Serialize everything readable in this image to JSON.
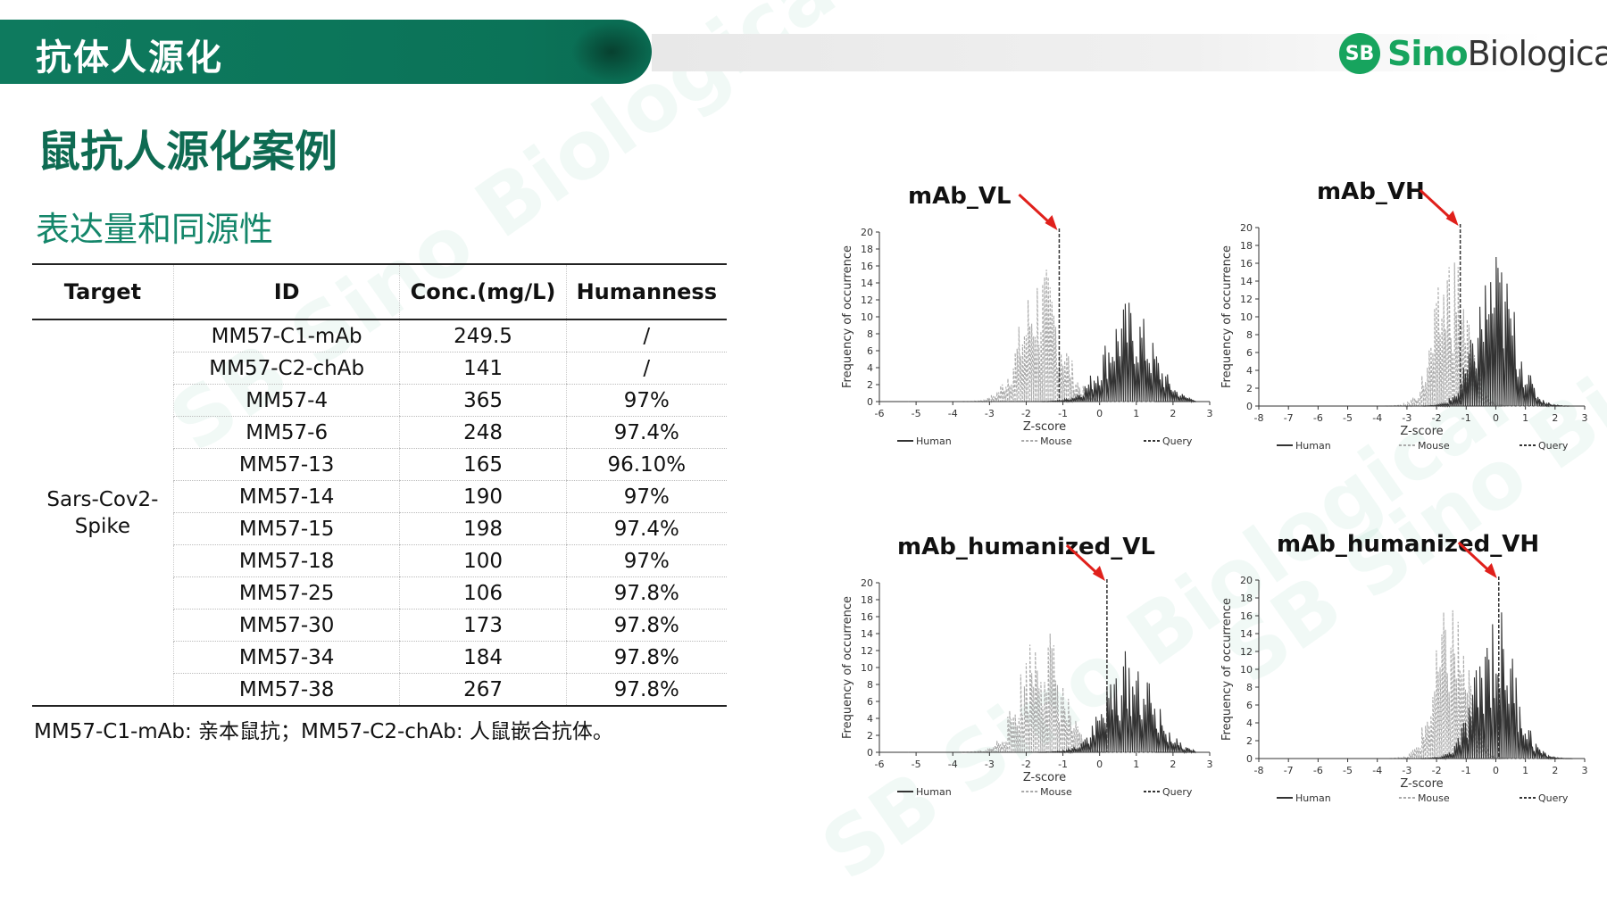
{
  "header": {
    "title": "抗体人源化",
    "logo": {
      "mark": "SB",
      "sino": "Sino",
      "bio": "Biological"
    }
  },
  "headings": {
    "h1": "鼠抗人源化案例",
    "h2": "表达量和同源性"
  },
  "table": {
    "columns": [
      "Target",
      "ID",
      "Conc.(mg/L)",
      "Humanness"
    ],
    "target": [
      "Sars-Cov2-",
      "Spike"
    ],
    "rows": [
      [
        "MM57-C1-mAb",
        "249.5",
        "/"
      ],
      [
        "MM57-C2-chAb",
        "141",
        "/"
      ],
      [
        "MM57-4",
        "365",
        "97%"
      ],
      [
        "MM57-6",
        "248",
        "97.4%"
      ],
      [
        "MM57-13",
        "165",
        "96.10%"
      ],
      [
        "MM57-14",
        "190",
        "97%"
      ],
      [
        "MM57-15",
        "198",
        "97.4%"
      ],
      [
        "MM57-18",
        "100",
        "97%"
      ],
      [
        "MM57-25",
        "106",
        "97.8%"
      ],
      [
        "MM57-30",
        "173",
        "97.8%"
      ],
      [
        "MM57-34",
        "184",
        "97.8%"
      ],
      [
        "MM57-38",
        "267",
        "97.8%"
      ]
    ]
  },
  "note": "MM57-C1-mAb: 亲本鼠抗；MM57-C2-chAb: 人鼠嵌合抗体。",
  "chart_data": [
    {
      "type": "line",
      "title": "mAb_VL",
      "xlabel": "Z-score",
      "ylabel": "Frequency of occurrence",
      "xlim": [
        -6,
        3
      ],
      "ylim": [
        0,
        20
      ],
      "query_x": -1.1,
      "xticks": [
        "-6",
        "-5",
        "-4",
        "-3",
        "-2",
        "-1",
        "0",
        "1",
        "2",
        "3"
      ],
      "yticks": [
        "0",
        "2",
        "4",
        "6",
        "8",
        "10",
        "12",
        "14",
        "16",
        "18",
        "20"
      ],
      "legend": [
        "Human",
        "Mouse",
        "Query"
      ]
    },
    {
      "type": "line",
      "title": "mAb_VH",
      "xlabel": "Z-score",
      "ylabel": "Frequency of occurrence",
      "xlim": [
        -8,
        3
      ],
      "ylim": [
        0,
        20
      ],
      "query_x": -1.2,
      "xticks": [
        "-8",
        "-7",
        "-6",
        "-5",
        "-4",
        "-3",
        "-2",
        "-1",
        "0",
        "1",
        "2",
        "3"
      ],
      "yticks": [
        "0",
        "2",
        "4",
        "6",
        "8",
        "10",
        "12",
        "14",
        "16",
        "18",
        "20"
      ],
      "legend": [
        "Human",
        "Mouse",
        "Query"
      ]
    },
    {
      "type": "line",
      "title": "mAb_humanized_VL",
      "xlabel": "Z-score",
      "ylabel": "Frequency of occurrence",
      "xlim": [
        -6,
        3
      ],
      "ylim": [
        0,
        20
      ],
      "query_x": 0.2,
      "xticks": [
        "-6",
        "-5",
        "-4",
        "-3",
        "-2",
        "-1",
        "0",
        "1",
        "2",
        "3"
      ],
      "yticks": [
        "0",
        "2",
        "4",
        "6",
        "8",
        "10",
        "12",
        "14",
        "16",
        "18",
        "20"
      ],
      "legend": [
        "Human",
        "Mouse",
        "Query"
      ]
    },
    {
      "type": "line",
      "title": "mAb_humanized_VH",
      "xlabel": "Z-score",
      "ylabel": "Frequency of occurrence",
      "xlim": [
        -8,
        3
      ],
      "ylim": [
        0,
        20
      ],
      "query_x": 0.1,
      "xticks": [
        "-8",
        "-7",
        "-6",
        "-5",
        "-4",
        "-3",
        "-2",
        "-1",
        "0",
        "1",
        "2",
        "3"
      ],
      "yticks": [
        "0",
        "2",
        "4",
        "6",
        "8",
        "10",
        "12",
        "14",
        "16",
        "18",
        "20"
      ],
      "legend": [
        "Human",
        "Mouse",
        "Query"
      ]
    }
  ]
}
